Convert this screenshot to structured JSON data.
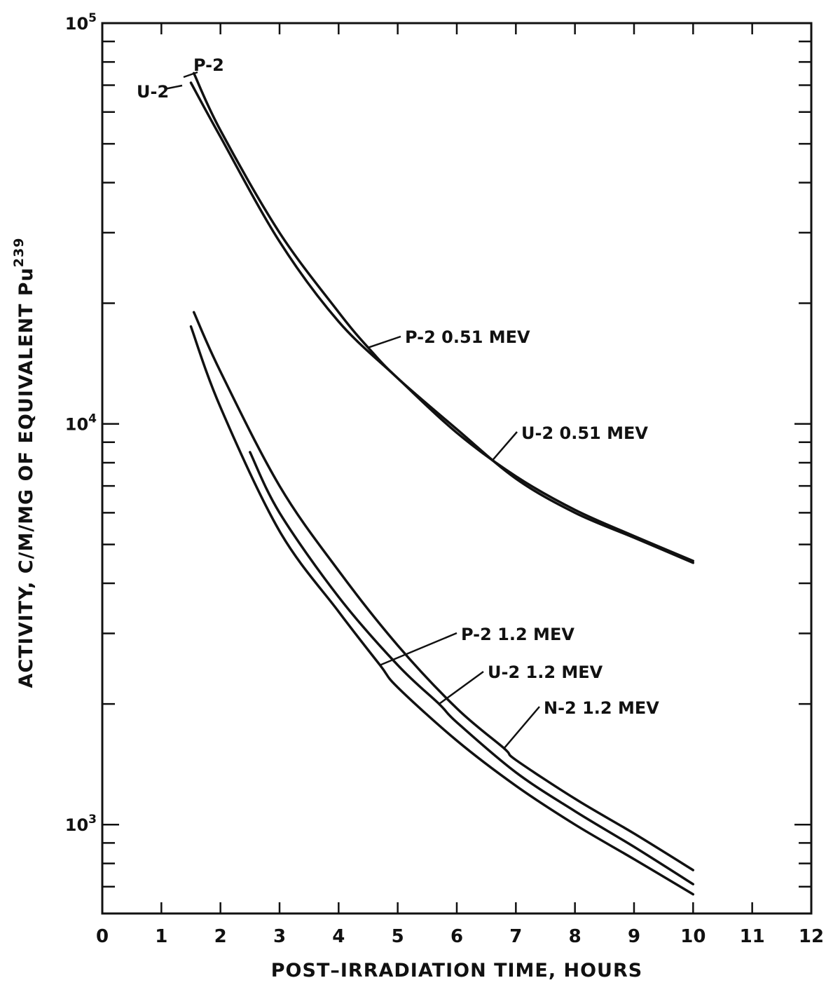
{
  "chart_data": {
    "type": "line",
    "xlabel": "POST–IRRADIATION TIME, HOURS",
    "ylabel": "ACTIVITY, C/M/MG OF EQUIVALENT Pu",
    "ylabel_superscript": "239",
    "xlim": [
      0,
      12
    ],
    "ylim": [
      600,
      100000
    ],
    "yscale": "log",
    "grid": false,
    "x_ticks": [
      "0",
      "1",
      "2",
      "3",
      "4",
      "5",
      "6",
      "7",
      "8",
      "9",
      "10",
      "11",
      "12"
    ],
    "y_ticks": [
      {
        "base": "10",
        "exp": "3",
        "value": 1000
      },
      {
        "base": "10",
        "exp": "4",
        "value": 10000
      },
      {
        "base": "10",
        "exp": "5",
        "value": 100000
      }
    ],
    "series": [
      {
        "name": "P-2",
        "label": "P-2 0.51 MEV",
        "x": [
          1.55,
          2,
          3,
          4,
          4.5,
          5,
          6,
          7,
          8,
          9,
          10
        ],
        "y": [
          75000,
          54000,
          30000,
          19000,
          15500,
          13000,
          9700,
          7300,
          6000,
          5200,
          4500
        ]
      },
      {
        "name": "U-2",
        "label": "U-2 0.51 MEV",
        "x": [
          1.5,
          2,
          3,
          4,
          5,
          6,
          7,
          8,
          9,
          10
        ],
        "y": [
          71000,
          52000,
          28500,
          18000,
          13000,
          9500,
          7400,
          6100,
          5250,
          4550
        ]
      },
      {
        "label": "P-2 1.2 MEV",
        "x": [
          1.5,
          2,
          3,
          4,
          4.7,
          5,
          6,
          7,
          8,
          9,
          10
        ],
        "y": [
          17500,
          11000,
          5400,
          3400,
          2500,
          2200,
          1620,
          1250,
          1000,
          820,
          670
        ]
      },
      {
        "label": "U-2 1.2 MEV",
        "x": [
          2.5,
          3,
          4,
          5,
          5.7,
          6,
          7,
          8,
          9,
          10
        ],
        "y": [
          8500,
          6000,
          3700,
          2500,
          2000,
          1800,
          1350,
          1080,
          880,
          710
        ]
      },
      {
        "label": "N-2 1.2 MEV",
        "x": [
          1.55,
          2,
          3,
          4,
          5,
          6,
          6.8,
          7,
          8,
          9,
          10
        ],
        "y": [
          19000,
          13500,
          7000,
          4300,
          2800,
          1950,
          1550,
          1450,
          1160,
          950,
          770
        ]
      }
    ],
    "annotations": [
      {
        "text": "P-2",
        "x": 1.6,
        "y": 79000
      },
      {
        "text": "U-2",
        "x": 1.52,
        "y": 68000
      },
      {
        "text": "P-2 0.51 MEV",
        "x": 4.5,
        "y": 15500
      },
      {
        "text": "U-2 0.51 MEV",
        "x": 6.6,
        "y": 8100
      },
      {
        "text": "P-2 1.2 MEV",
        "x": 4.7,
        "y": 2500
      },
      {
        "text": "U-2 1.2 MEV",
        "x": 5.7,
        "y": 2000
      },
      {
        "text": "N-2 1.2 MEV",
        "x": 6.8,
        "y": 1550
      }
    ]
  }
}
